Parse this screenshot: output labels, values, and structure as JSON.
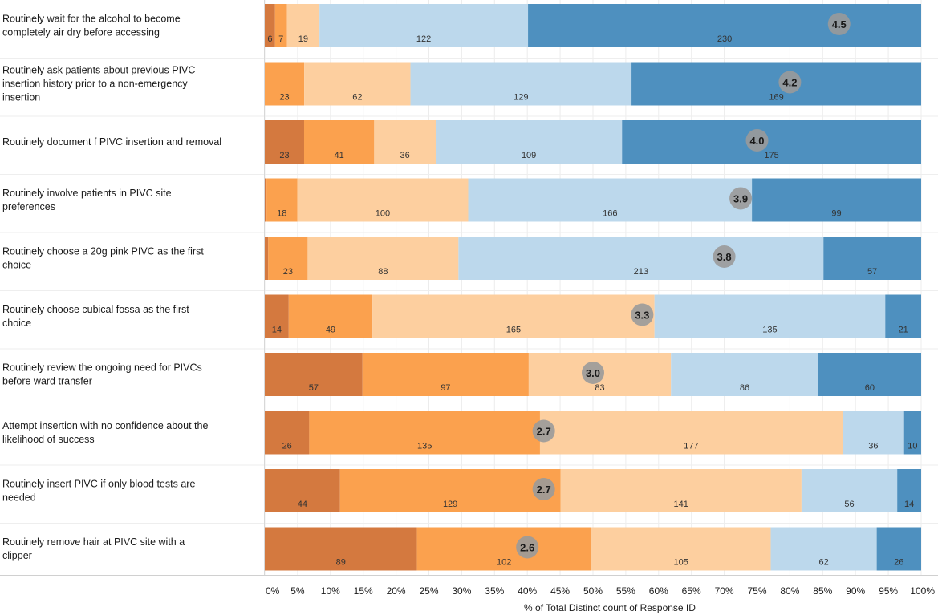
{
  "chart_data": {
    "type": "bar",
    "orientation": "horizontal",
    "stacked": "percent",
    "xlabel": "% of Total Distinct count of Response ID",
    "xlim": [
      0,
      100
    ],
    "xticks": [
      "0%",
      "5%",
      "10%",
      "15%",
      "20%",
      "25%",
      "30%",
      "35%",
      "40%",
      "45%",
      "50%",
      "55%",
      "60%",
      "65%",
      "70%",
      "75%",
      "80%",
      "85%",
      "90%",
      "95%",
      "100%"
    ],
    "grid": "vertical",
    "legend": "none",
    "series_colors": [
      "#d4793f",
      "#fba14e",
      "#fdcf9f",
      "#bcd8ec",
      "#4e90bf"
    ],
    "categories": [
      "Routinely wait for the alcohol to become completely air dry before accessing",
      "Routinely ask patients about previous PIVC insertion history prior to a non-emergency insertion",
      "Routinely document f PIVC insertion and removal",
      "Routinely involve patients in PIVC site preferences",
      "Routinely choose a 20g pink PIVC as the first choice",
      "Routinely choose cubical fossa as the first choice",
      "Routinely review the ongoing need for PIVCs before ward transfer",
      "Attempt insertion with no confidence about the likelihood of success",
      "Routinely insert PIVC if only blood tests are needed",
      "Routinely remove hair at PIVC site with a clipper"
    ],
    "rows": [
      {
        "values": [
          6,
          7,
          19,
          122,
          230
        ],
        "labels": [
          "6",
          "7",
          "19",
          "122",
          "230"
        ],
        "mean": "4.5"
      },
      {
        "values": [
          0,
          23,
          62,
          129,
          169
        ],
        "labels": [
          "",
          "23",
          "62",
          "129",
          "169"
        ],
        "mean": "4.2"
      },
      {
        "values": [
          23,
          41,
          36,
          109,
          175
        ],
        "labels": [
          "23",
          "41",
          "36",
          "109",
          "175"
        ],
        "mean": "4.0"
      },
      {
        "values": [
          1,
          18,
          100,
          166,
          99
        ],
        "labels": [
          "",
          "18",
          "100",
          "166",
          "99"
        ],
        "mean": "3.9"
      },
      {
        "values": [
          2,
          23,
          88,
          213,
          57
        ],
        "labels": [
          "",
          "23",
          "88",
          "213",
          "57"
        ],
        "mean": "3.8"
      },
      {
        "values": [
          14,
          49,
          165,
          135,
          21
        ],
        "labels": [
          "14",
          "49",
          "165",
          "135",
          "21"
        ],
        "mean": "3.3"
      },
      {
        "values": [
          57,
          97,
          83,
          86,
          60
        ],
        "labels": [
          "57",
          "97",
          "83",
          "86",
          "60"
        ],
        "mean": "3.0"
      },
      {
        "values": [
          26,
          135,
          177,
          36,
          10
        ],
        "labels": [
          "26",
          "135",
          "177",
          "36",
          "10"
        ],
        "mean": "2.7"
      },
      {
        "values": [
          44,
          129,
          141,
          56,
          14
        ],
        "labels": [
          "44",
          "129",
          "141",
          "56",
          "14"
        ],
        "mean": "2.7"
      },
      {
        "values": [
          89,
          102,
          105,
          62,
          26
        ],
        "labels": [
          "89",
          "102",
          "105",
          "62",
          "26"
        ],
        "mean": "2.6"
      }
    ]
  }
}
